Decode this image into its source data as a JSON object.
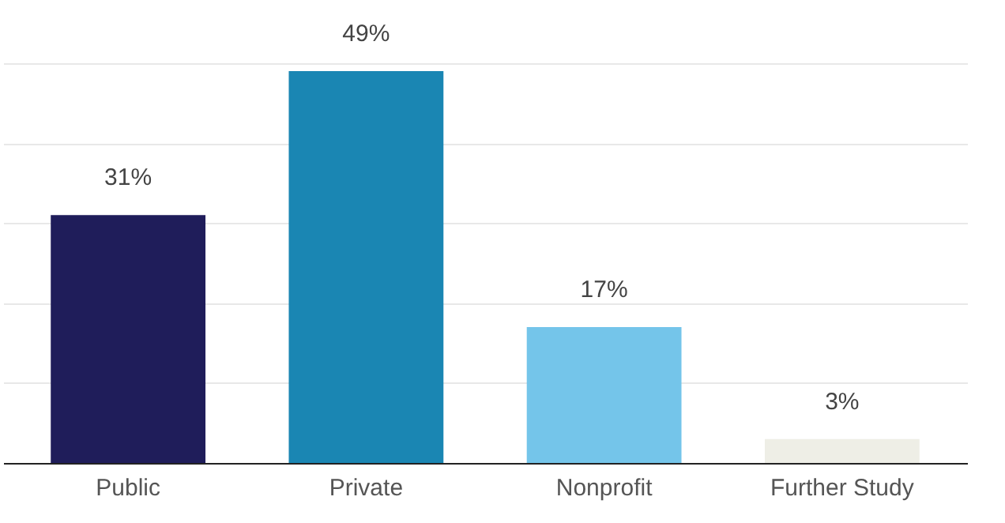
{
  "chart_data": {
    "type": "bar",
    "categories": [
      "Public",
      "Private",
      "Nonprofit",
      "Further Study"
    ],
    "values": [
      31,
      49,
      17,
      3
    ],
    "colors": [
      "#1f1d5a",
      "#1a86b3",
      "#74c5ea",
      "#eeeee6"
    ],
    "value_labels": [
      "31%",
      "49%",
      "17%",
      "3%"
    ],
    "ylim": [
      0,
      50
    ],
    "yticks": [
      {
        "value": 0,
        "label": null
      },
      {
        "value": 10,
        "label": null
      },
      {
        "value": 20,
        "label": null
      },
      {
        "value": 30,
        "label": null
      },
      {
        "value": 40,
        "label": null
      },
      {
        "value": 50,
        "label": null
      }
    ],
    "grid": "y",
    "tick_labels": "x"
  }
}
